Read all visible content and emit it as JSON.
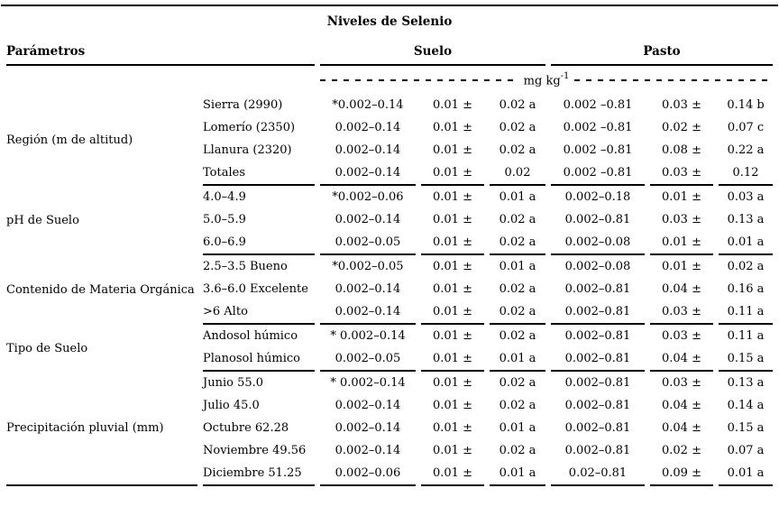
{
  "page": {
    "background_color": "#ffffff",
    "text_color": "#000000",
    "rule_color": "#000000"
  },
  "table": {
    "title": "Niveles de Selenio",
    "headers": {
      "parametros": "Parámetros",
      "suelo": "Suelo",
      "pasto": "Pasto"
    },
    "units": {
      "unit": "mg kg",
      "exponent": "-1"
    },
    "groups": [
      {
        "label": "Región (m de altitud)",
        "rows": [
          {
            "sub": "Sierra (2990)",
            "suelo_range": "*0.002–0.14",
            "suelo_mean": "0.01 ±",
            "suelo_sd": "0.02 a",
            "pasto_range": "0.002 –0.81",
            "pasto_mean": "0.03 ±",
            "pasto_sd": "0.14 b"
          },
          {
            "sub": "Lomerío (2350)",
            "suelo_range": "0.002–0.14",
            "suelo_mean": "0.01 ±",
            "suelo_sd": "0.02 a",
            "pasto_range": "0.002 –0.81",
            "pasto_mean": "0.02 ±",
            "pasto_sd": "0.07 c"
          },
          {
            "sub": "Llanura (2320)",
            "suelo_range": "0.002–0.14",
            "suelo_mean": "0.01 ±",
            "suelo_sd": "0.02 a",
            "pasto_range": "0.002 –0.81",
            "pasto_mean": "0.08 ±",
            "pasto_sd": "0.22 a"
          },
          {
            "sub": "Totales",
            "suelo_range": "0.002–0.14",
            "suelo_mean": "0.01 ±",
            "suelo_sd": "0.02",
            "pasto_range": "0.002 –0.81",
            "pasto_mean": "0.03 ±",
            "pasto_sd": "0.12"
          }
        ]
      },
      {
        "label": "pH de Suelo",
        "rows": [
          {
            "sub": "4.0–4.9",
            "suelo_range": "*0.002–0.06",
            "suelo_mean": "0.01 ±",
            "suelo_sd": "0.01 a",
            "pasto_range": "0.002–0.18",
            "pasto_mean": "0.01 ±",
            "pasto_sd": "0.03 a"
          },
          {
            "sub": "5.0–5.9",
            "suelo_range": "0.002–0.14",
            "suelo_mean": "0.01 ±",
            "suelo_sd": "0.02 a",
            "pasto_range": "0.002–0.81",
            "pasto_mean": "0.03 ±",
            "pasto_sd": "0.13 a"
          },
          {
            "sub": "6.0–6.9",
            "suelo_range": "0.002–0.05",
            "suelo_mean": "0.01 ±",
            "suelo_sd": "0.02 a",
            "pasto_range": "0.002–0.08",
            "pasto_mean": "0.01 ±",
            "pasto_sd": "0.01 a"
          }
        ]
      },
      {
        "label": "Contenido de Materia Orgánica",
        "rows": [
          {
            "sub": "2.5–3.5 Bueno",
            "suelo_range": "*0.002–0.05",
            "suelo_mean": "0.01 ±",
            "suelo_sd": "0.01 a",
            "pasto_range": "0.002–0.08",
            "pasto_mean": "0.01 ±",
            "pasto_sd": "0.02 a"
          },
          {
            "sub": "3.6–6.0 Excelente",
            "suelo_range": "0.002–0.14",
            "suelo_mean": "0.01 ±",
            "suelo_sd": "0.02 a",
            "pasto_range": "0.002–0.81",
            "pasto_mean": "0.04 ±",
            "pasto_sd": "0.16 a"
          },
          {
            "sub": ">6 Alto",
            "suelo_range": "0.002–0.14",
            "suelo_mean": "0.01 ±",
            "suelo_sd": "0.02 a",
            "pasto_range": "0.002–0.81",
            "pasto_mean": "0.03 ±",
            "pasto_sd": "0.11 a"
          }
        ]
      },
      {
        "label": "Tipo de Suelo",
        "rows": [
          {
            "sub": "Andosol húmico",
            "suelo_range": "* 0.002–0.14",
            "suelo_mean": "0.01 ±",
            "suelo_sd": "0.02 a",
            "pasto_range": "0.002–0.81",
            "pasto_mean": "0.03 ±",
            "pasto_sd": "0.11 a"
          },
          {
            "sub": "Planosol húmico",
            "suelo_range": "0.002–0.05",
            "suelo_mean": "0.01 ±",
            "suelo_sd": "0.01 a",
            "pasto_range": "0.002–0.81",
            "pasto_mean": "0.04 ±",
            "pasto_sd": "0.15 a"
          }
        ]
      },
      {
        "label": "Precipitación pluvial (mm)",
        "rows": [
          {
            "sub": "Junio 55.0",
            "suelo_range": "* 0.002–0.14",
            "suelo_mean": "0.01 ±",
            "suelo_sd": "0.02 a",
            "pasto_range": "0.002–0.81",
            "pasto_mean": "0.03 ±",
            "pasto_sd": "0.13 a"
          },
          {
            "sub": "Julio 45.0",
            "suelo_range": "0.002–0.14",
            "suelo_mean": "0.01 ±",
            "suelo_sd": "0.02 a",
            "pasto_range": "0.002–0.81",
            "pasto_mean": "0.04 ±",
            "pasto_sd": "0.14 a"
          },
          {
            "sub": "Octubre 62.28",
            "suelo_range": "0.002–0.14",
            "suelo_mean": "0.01 ±",
            "suelo_sd": "0.01 a",
            "pasto_range": "0.002–0.81",
            "pasto_mean": "0.04 ±",
            "pasto_sd": "0.15 a"
          },
          {
            "sub": "Noviembre 49.56",
            "suelo_range": "0.002–0.14",
            "suelo_mean": "0.01 ±",
            "suelo_sd": "0.02 a",
            "pasto_range": "0.002–0.81",
            "pasto_mean": "0.02 ±",
            "pasto_sd": "0.07 a"
          },
          {
            "sub": "Diciembre 51.25",
            "suelo_range": "0.002–0.06",
            "suelo_mean": "0.01 ±",
            "suelo_sd": "0.01 a",
            "pasto_range": "0.02–0.81",
            "pasto_mean": "0.09 ±",
            "pasto_sd": "0.01 a"
          }
        ]
      }
    ]
  }
}
